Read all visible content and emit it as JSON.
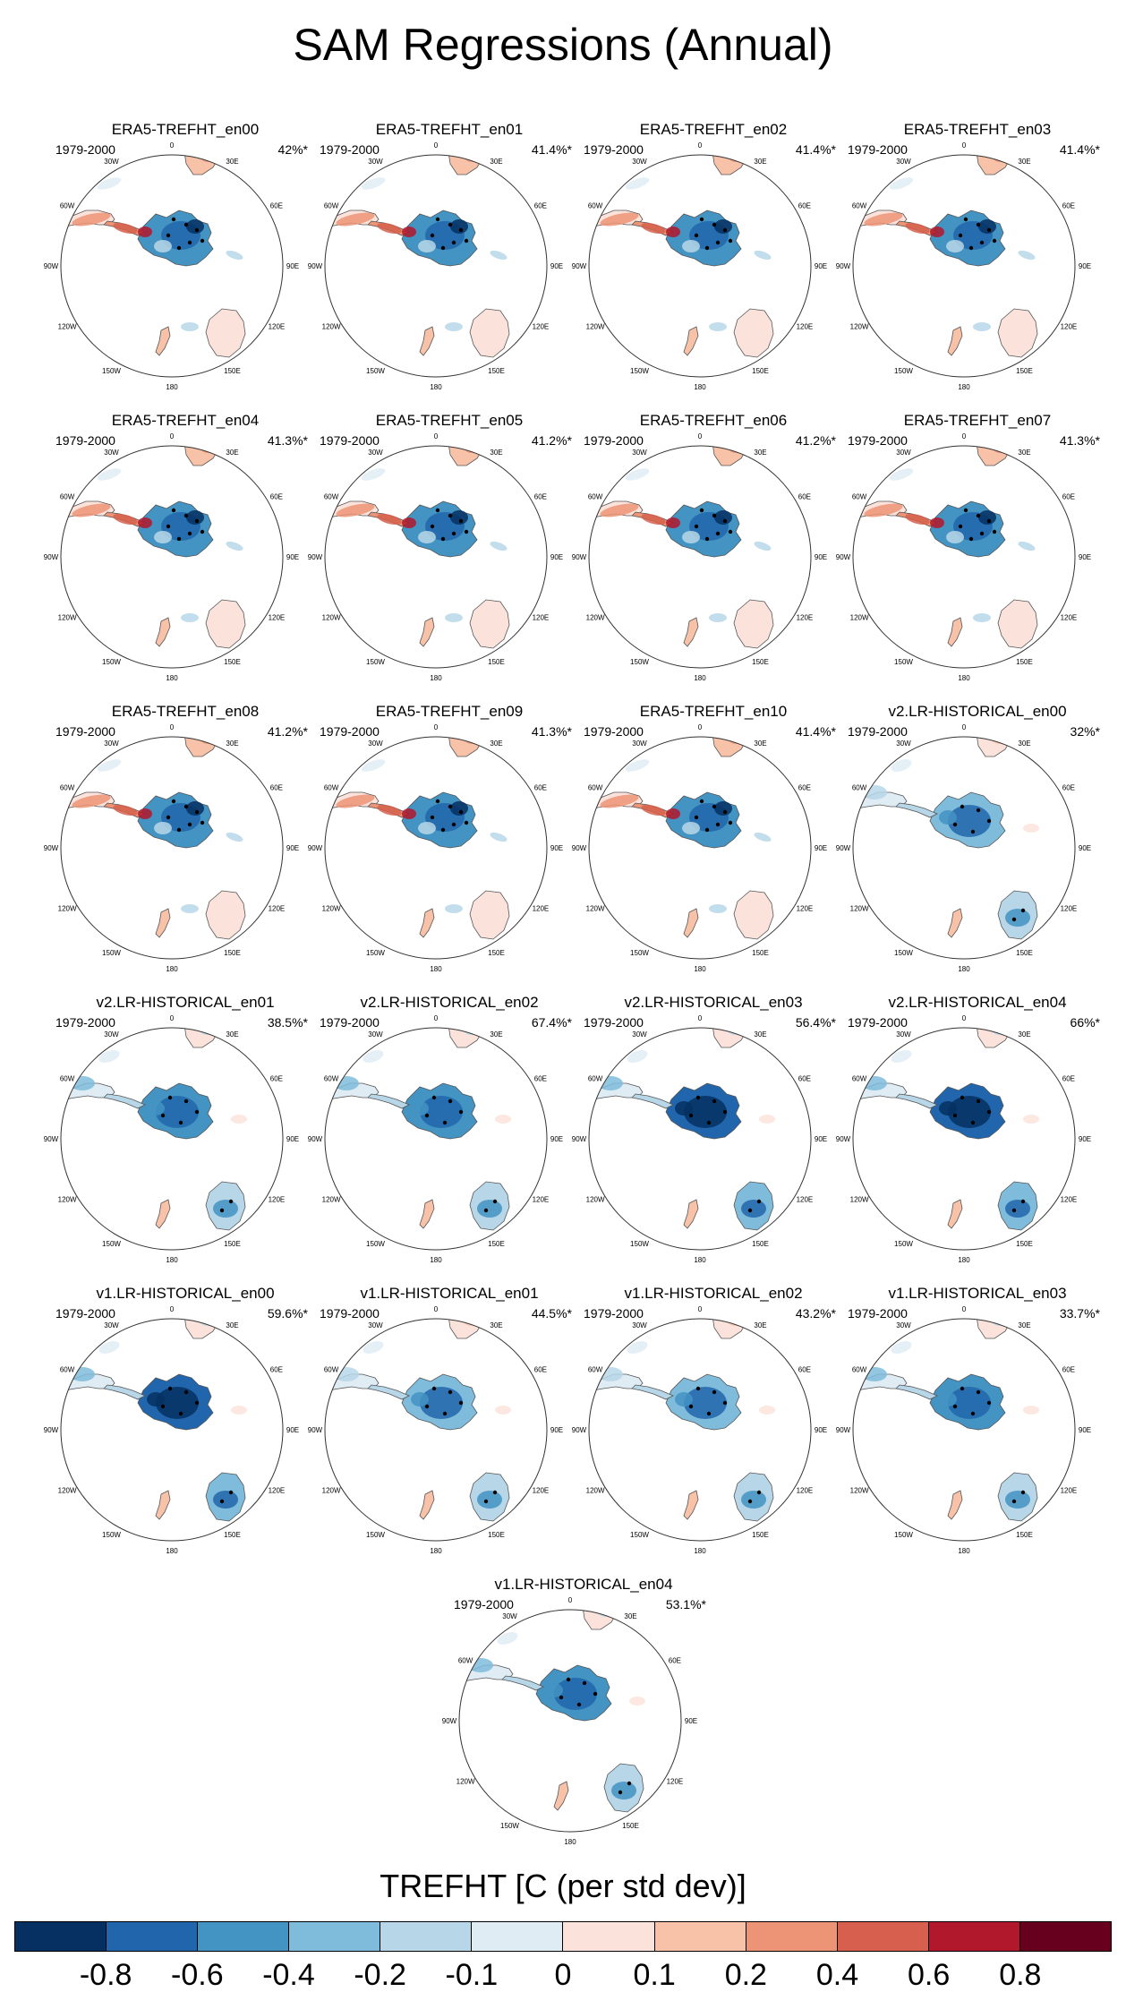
{
  "chart_data": {
    "type": "map-grid",
    "title": "SAM Regressions (Annual)",
    "projection": "south-polar-stereographic",
    "lon_labels": [
      "0",
      "30E",
      "60E",
      "90E",
      "120E",
      "150E",
      "180",
      "150W",
      "120W",
      "90W",
      "60W",
      "30W"
    ],
    "panels": [
      {
        "name": "ERA5-TREFHT_en00",
        "period": "1979-2000",
        "variance_explained": "42%*",
        "pattern": "era5"
      },
      {
        "name": "ERA5-TREFHT_en01",
        "period": "1979-2000",
        "variance_explained": "41.4%*",
        "pattern": "era5"
      },
      {
        "name": "ERA5-TREFHT_en02",
        "period": "1979-2000",
        "variance_explained": "41.4%*",
        "pattern": "era5"
      },
      {
        "name": "ERA5-TREFHT_en03",
        "period": "1979-2000",
        "variance_explained": "41.4%*",
        "pattern": "era5"
      },
      {
        "name": "ERA5-TREFHT_en04",
        "period": "1979-2000",
        "variance_explained": "41.3%*",
        "pattern": "era5"
      },
      {
        "name": "ERA5-TREFHT_en05",
        "period": "1979-2000",
        "variance_explained": "41.2%*",
        "pattern": "era5"
      },
      {
        "name": "ERA5-TREFHT_en06",
        "period": "1979-2000",
        "variance_explained": "41.2%*",
        "pattern": "era5"
      },
      {
        "name": "ERA5-TREFHT_en07",
        "period": "1979-2000",
        "variance_explained": "41.3%*",
        "pattern": "era5"
      },
      {
        "name": "ERA5-TREFHT_en08",
        "period": "1979-2000",
        "variance_explained": "41.2%*",
        "pattern": "era5"
      },
      {
        "name": "ERA5-TREFHT_en09",
        "period": "1979-2000",
        "variance_explained": "41.3%*",
        "pattern": "era5"
      },
      {
        "name": "ERA5-TREFHT_en10",
        "period": "1979-2000",
        "variance_explained": "41.4%*",
        "pattern": "era5"
      },
      {
        "name": "v2.LR-HISTORICAL_en00",
        "period": "1979-2000",
        "variance_explained": "32%*",
        "pattern": "model-weak"
      },
      {
        "name": "v2.LR-HISTORICAL_en01",
        "period": "1979-2000",
        "variance_explained": "38.5%*",
        "pattern": "model"
      },
      {
        "name": "v2.LR-HISTORICAL_en02",
        "period": "1979-2000",
        "variance_explained": "67.4%*",
        "pattern": "model"
      },
      {
        "name": "v2.LR-HISTORICAL_en03",
        "period": "1979-2000",
        "variance_explained": "56.4%*",
        "pattern": "model-strong"
      },
      {
        "name": "v2.LR-HISTORICAL_en04",
        "period": "1979-2000",
        "variance_explained": "66%*",
        "pattern": "model-strong"
      },
      {
        "name": "v1.LR-HISTORICAL_en00",
        "period": "1979-2000",
        "variance_explained": "59.6%*",
        "pattern": "model-strong"
      },
      {
        "name": "v1.LR-HISTORICAL_en01",
        "period": "1979-2000",
        "variance_explained": "44.5%*",
        "pattern": "model-weak"
      },
      {
        "name": "v1.LR-HISTORICAL_en02",
        "period": "1979-2000",
        "variance_explained": "43.2%*",
        "pattern": "model-weak"
      },
      {
        "name": "v1.LR-HISTORICAL_en03",
        "period": "1979-2000",
        "variance_explained": "33.7%*",
        "pattern": "model"
      },
      {
        "name": "v1.LR-HISTORICAL_en04",
        "period": "1979-2000",
        "variance_explained": "53.1%*",
        "pattern": "model"
      }
    ],
    "colorbar": {
      "title": "TREFHT [C (per std dev)]",
      "levels": [
        "-0.8",
        "-0.6",
        "-0.4",
        "-0.2",
        "-0.1",
        "0",
        "0.1",
        "0.2",
        "0.4",
        "0.6",
        "0.8"
      ],
      "colors": [
        "#053061",
        "#2166ac",
        "#4393c3",
        "#7fbcdc",
        "#b7d7e8",
        "#e0ecf4",
        "#fbe3dc",
        "#f7c2a8",
        "#ec9475",
        "#d6604d",
        "#b2182b",
        "#67001f"
      ]
    }
  }
}
